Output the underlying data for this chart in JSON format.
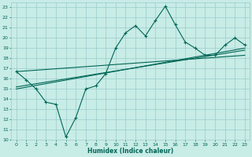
{
  "title": "",
  "xlabel": "Humidex (Indice chaleur)",
  "bg_color": "#c8ece6",
  "grid_color": "#99cccc",
  "line_color": "#006655",
  "xlim": [
    -0.5,
    23.5
  ],
  "ylim": [
    10,
    23.5
  ],
  "yticks": [
    10,
    11,
    12,
    13,
    14,
    15,
    16,
    17,
    18,
    19,
    20,
    21,
    22,
    23
  ],
  "xticks": [
    0,
    1,
    2,
    3,
    4,
    5,
    6,
    7,
    8,
    9,
    10,
    11,
    12,
    13,
    14,
    15,
    16,
    17,
    18,
    19,
    20,
    21,
    22,
    23
  ],
  "main_x": [
    0,
    1,
    2,
    3,
    4,
    5,
    6,
    7,
    8,
    9,
    10,
    11,
    12,
    13,
    14,
    15,
    16,
    17,
    18,
    19,
    20,
    21,
    22,
    23
  ],
  "main_y": [
    16.7,
    15.9,
    15.0,
    13.7,
    13.5,
    10.3,
    12.2,
    15.0,
    15.3,
    16.5,
    19.0,
    20.5,
    21.2,
    20.2,
    21.7,
    23.1,
    21.3,
    19.6,
    19.0,
    18.3,
    18.3,
    19.3,
    20.0,
    19.3
  ],
  "trend1_x": [
    0,
    23
  ],
  "trend1_y": [
    15.0,
    19.0
  ],
  "trend2_x": [
    0,
    23
  ],
  "trend2_y": [
    15.2,
    18.8
  ],
  "trend3_x": [
    0,
    23
  ],
  "trend3_y": [
    16.7,
    18.3
  ]
}
